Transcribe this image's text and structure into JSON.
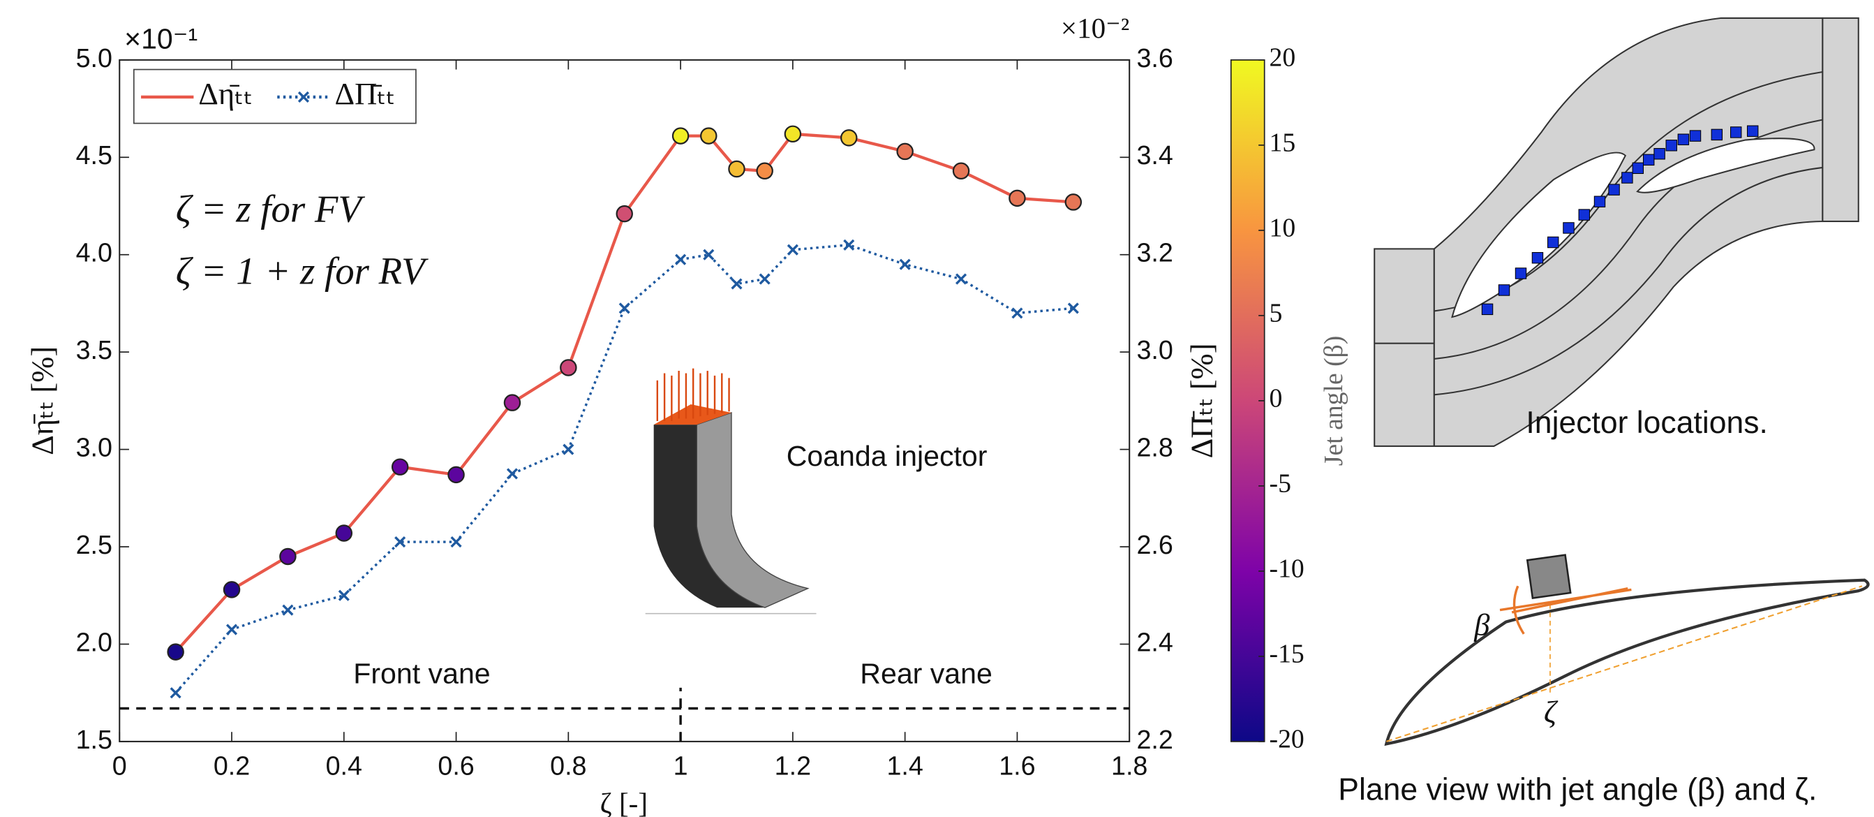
{
  "chart_data": {
    "type": "line",
    "x": [
      0.1,
      0.2,
      0.3,
      0.4,
      0.5,
      0.6,
      0.7,
      0.8,
      0.9,
      1.0,
      1.05,
      1.1,
      1.15,
      1.2,
      1.3,
      1.4,
      1.5,
      1.6,
      1.7
    ],
    "series": [
      {
        "name": "Δη̄ₜₜ",
        "color": "#e8584a",
        "axis": "y",
        "values": [
          1.96,
          2.28,
          2.45,
          2.57,
          2.91,
          2.87,
          3.24,
          3.42,
          4.21,
          4.61,
          4.61,
          4.44,
          4.43,
          4.62,
          4.6,
          4.53,
          4.43,
          4.29,
          4.27
        ],
        "marker_values": [
          -19,
          -18,
          -13,
          -15,
          -12,
          -13,
          -6,
          0,
          1,
          19,
          15,
          14,
          9,
          18,
          15,
          6,
          6,
          6,
          6
        ]
      },
      {
        "name": "ΔΠ̄ₜₜ",
        "color": "#1f5aa0",
        "axis": "y2",
        "values": [
          2.3,
          2.43,
          2.47,
          2.5,
          2.61,
          2.61,
          2.75,
          2.8,
          3.09,
          3.19,
          3.2,
          3.14,
          3.15,
          3.21,
          3.22,
          3.18,
          3.15,
          3.08,
          3.09
        ]
      }
    ],
    "xlim": [
      0,
      1.8
    ],
    "xticks": [
      0,
      0.2,
      0.4,
      0.6,
      0.8,
      1,
      1.2,
      1.4,
      1.6,
      1.8
    ],
    "ylim": [
      1.5,
      5.0
    ],
    "yticks": [
      1.5,
      {
        "value": 2,
        "label": "2.0"
      },
      2.5,
      {
        "value": 3,
        "label": "3.0"
      },
      3.5,
      {
        "value": 4,
        "label": "4.0"
      },
      4.5,
      {
        "value": 5,
        "label": "5.0"
      }
    ],
    "y2lim": [
      2.2,
      3.6
    ],
    "y2ticks": [
      2.2,
      2.4,
      2.6,
      2.8,
      {
        "value": 3,
        "label": "3.0"
      },
      3.2,
      3.4,
      3.6
    ],
    "ylabel": "Δη̄ₜₜ [%]",
    "y2label": "ΔΠ̄ₜₜ [%]",
    "xlabel": "ζ [-]",
    "ymultiplier": "×10⁻¹",
    "y2multiplier": "×10⁻²",
    "hline": 1.67,
    "vline": 1,
    "colorbar": {
      "label": "Jet angle (β)",
      "colormap": "plasma",
      "clim": [
        -20,
        20
      ],
      "ticks": [
        -20,
        -15,
        -10,
        -5,
        0,
        5,
        10,
        15,
        20
      ]
    },
    "legend": "upper left",
    "annotations": {
      "front": "Front vane",
      "rear": "Rear vane",
      "fv": "ζ = z  for FV",
      "rv": "ζ = 1 + z for RV",
      "coanda": "Coanda injector"
    }
  },
  "panels": {
    "injector": "Injector locations.",
    "plane": "Plane view with jet angle (β) and ζ.",
    "beta": "β",
    "zeta": "ζ"
  }
}
